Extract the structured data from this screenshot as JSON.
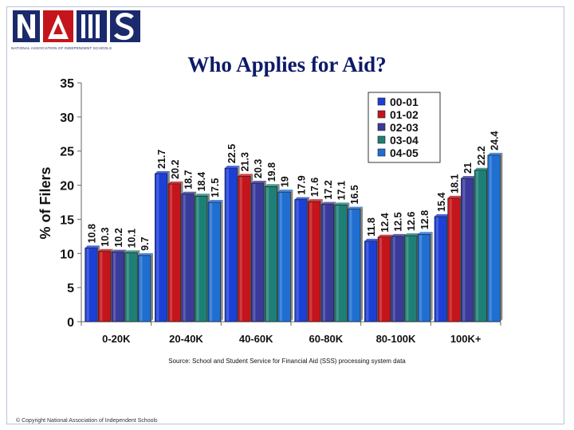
{
  "header": {
    "logo_caption": "NATIONAL ASSOCIATION OF INDEPENDENT SCHOOLS",
    "title": "Who Applies for Aid?"
  },
  "footer": {
    "source": "Source: School and Student Service for Financial Aid (SSS) processing system data",
    "copyright": "© Copyright National Association of Independent Schools"
  },
  "colors": {
    "title": "#0d1a66",
    "logo_navy": "#1a2a6c",
    "series": [
      "#1c3fd6",
      "#c4151c",
      "#3a3a9a",
      "#1d7f76",
      "#1f6fd1"
    ]
  },
  "chart_data": {
    "type": "bar",
    "ylabel": "% of Filers",
    "xlabel": "",
    "ylim": [
      0,
      35
    ],
    "yticks": [
      0,
      5,
      10,
      15,
      20,
      25,
      30,
      35
    ],
    "categories": [
      "0-20K",
      "20-40K",
      "40-60K",
      "60-80K",
      "80-100K",
      "100K+"
    ],
    "series": [
      {
        "name": "00-01",
        "values": [
          10.8,
          21.7,
          22.5,
          17.9,
          11.8,
          15.4
        ]
      },
      {
        "name": "01-02",
        "values": [
          10.3,
          20.2,
          21.3,
          17.6,
          12.4,
          18.1
        ]
      },
      {
        "name": "02-03",
        "values": [
          10.2,
          18.7,
          20.3,
          17.2,
          12.5,
          21
        ]
      },
      {
        "name": "03-04",
        "values": [
          10.1,
          18.4,
          19.8,
          17.1,
          12.6,
          22.2
        ]
      },
      {
        "name": "04-05",
        "values": [
          9.7,
          17.5,
          19,
          16.5,
          12.8,
          24.4
        ]
      }
    ],
    "legend_position": "top-right",
    "data_labels": true,
    "grid": false
  }
}
